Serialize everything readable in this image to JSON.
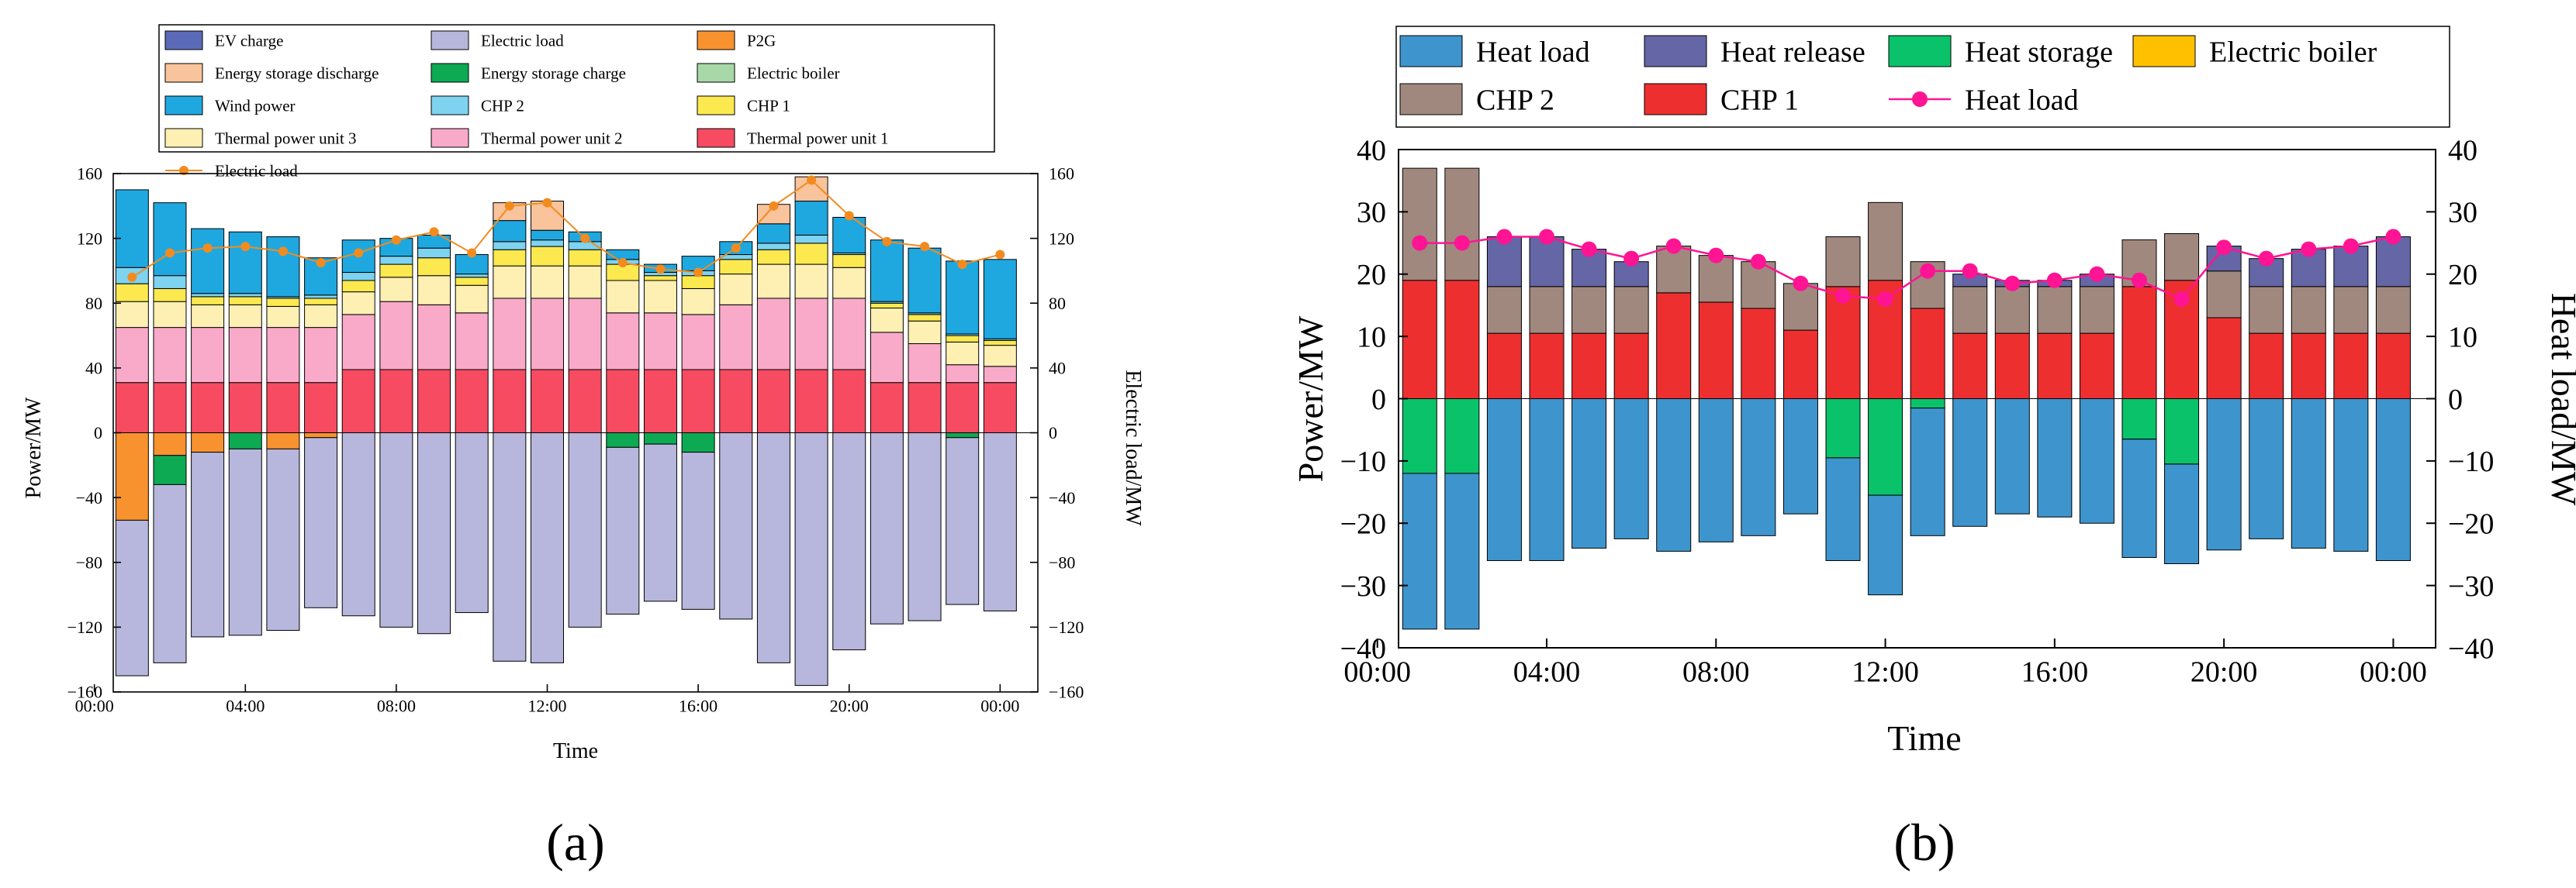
{
  "colors": {
    "ev_charge": "#5b6ab8",
    "electric_load": "#b7b7dd",
    "p2g": "#f7922f",
    "es_discharge": "#f9c39b",
    "es_charge": "#0daa53",
    "electric_boiler_a": "#a8d8a8",
    "wind_power": "#1fa8e0",
    "chp2_a": "#7dd3f0",
    "chp1_a": "#fce94f",
    "tpu3": "#fdf0b2",
    "tpu2": "#f9aac9",
    "tpu1": "#f74b61",
    "line_a": "#f28b1f",
    "heat_load": "#3e95cd",
    "heat_release": "#6466a6",
    "heat_storage": "#0ac26a",
    "electric_boiler_b": "#ffc000",
    "chp2_b": "#a1887f",
    "chp1_b": "#ee2f2f",
    "line_b": "#ff1493"
  },
  "chart_data": [
    {
      "panel": "(a)",
      "type": "bar",
      "stacked": true,
      "xlabel": "Time",
      "ylabel": "Power/MW",
      "ylabel_right": "Electric load/MW",
      "ylim": [
        -160,
        160
      ],
      "yticks": [
        -160,
        -120,
        -80,
        -40,
        0,
        40,
        80,
        120,
        160
      ],
      "ytick_labels": [
        "−160",
        "−120",
        "−80",
        "−40",
        "0",
        "40",
        "80",
        "120",
        "160"
      ],
      "xticks": [
        "00:00",
        "04:00",
        "08:00",
        "12:00",
        "16:00",
        "20:00",
        "00:00"
      ],
      "x_hours": [
        1,
        2,
        3,
        4,
        5,
        6,
        7,
        8,
        9,
        10,
        11,
        12,
        13,
        14,
        15,
        16,
        17,
        18,
        19,
        20,
        21,
        22,
        23,
        24
      ],
      "legend": [
        {
          "label": "EV charge",
          "color_key": "ev_charge"
        },
        {
          "label": "Electric load",
          "color_key": "electric_load"
        },
        {
          "label": "P2G",
          "color_key": "p2g"
        },
        {
          "label": "Energy storage discharge",
          "color_key": "es_discharge"
        },
        {
          "label": "Energy storage charge",
          "color_key": "es_charge"
        },
        {
          "label": "Electric boiler",
          "color_key": "electric_boiler_a"
        },
        {
          "label": "Wind power",
          "color_key": "wind_power"
        },
        {
          "label": "CHP 2",
          "color_key": "chp2_a"
        },
        {
          "label": "CHP 1",
          "color_key": "chp1_a"
        },
        {
          "label": "Thermal power unit 3",
          "color_key": "tpu3"
        },
        {
          "label": "Thermal power unit 2",
          "color_key": "tpu2"
        },
        {
          "label": "Thermal power unit 1",
          "color_key": "tpu1"
        },
        {
          "label": "Electric load",
          "color_key": "line_a",
          "marker": "line"
        }
      ],
      "positive_series": [
        {
          "name": "Thermal power unit 1",
          "color_key": "tpu1",
          "values": [
            31,
            31,
            31,
            31,
            31,
            31,
            39,
            39,
            39,
            39,
            39,
            39,
            39,
            39,
            39,
            39,
            39,
            39,
            39,
            39,
            31,
            31,
            31,
            31
          ]
        },
        {
          "name": "Thermal power unit 2",
          "color_key": "tpu2",
          "values": [
            34,
            34,
            34,
            34,
            34,
            34,
            34,
            42,
            40,
            35,
            44,
            44,
            44,
            35,
            35,
            34,
            40,
            44,
            44,
            44,
            31,
            24,
            11,
            10
          ]
        },
        {
          "name": "Thermal power unit 3",
          "color_key": "tpu3",
          "values": [
            16,
            16,
            14,
            14,
            13,
            14,
            14,
            15,
            18,
            17,
            20,
            20,
            20,
            20,
            20,
            16,
            19,
            21,
            21,
            19,
            15,
            14,
            14,
            13
          ]
        },
        {
          "name": "CHP 1",
          "color_key": "chp1_a",
          "values": [
            11,
            8,
            5,
            5,
            5,
            4,
            7,
            8,
            11,
            5,
            10,
            12,
            10,
            10,
            3,
            8,
            9,
            9,
            13,
            8,
            3,
            4,
            4,
            3
          ]
        },
        {
          "name": "CHP 2",
          "color_key": "chp2_a",
          "values": [
            10,
            8,
            2,
            2,
            1,
            2,
            5,
            5,
            6,
            2,
            5,
            4,
            5,
            3,
            2,
            3,
            3,
            4,
            5,
            1,
            1,
            1,
            1,
            1
          ]
        },
        {
          "name": "Electric boiler",
          "color_key": "electric_boiler_a",
          "values": [
            0,
            0,
            0,
            0,
            0,
            0,
            0,
            0,
            0,
            0,
            0,
            0,
            0,
            0,
            0,
            0,
            0,
            0,
            0,
            0,
            0,
            0,
            0,
            0
          ]
        },
        {
          "name": "Wind power",
          "color_key": "wind_power",
          "values": [
            48,
            45,
            40,
            38,
            37,
            23,
            20,
            11,
            8,
            12,
            13,
            6,
            6,
            6,
            5,
            9,
            8,
            12,
            21,
            22,
            38,
            40,
            45,
            49
          ]
        },
        {
          "name": "Energy storage discharge",
          "color_key": "es_discharge",
          "values": [
            0,
            0,
            0,
            0,
            0,
            0,
            0,
            0,
            0,
            0,
            11,
            18,
            0,
            0,
            0,
            0,
            0,
            12,
            15,
            0,
            0,
            0,
            0,
            0
          ]
        }
      ],
      "negative_series": [
        {
          "name": "P2G",
          "color_key": "p2g",
          "values": [
            -54,
            -14,
            -12,
            0,
            -10,
            -3,
            0,
            0,
            0,
            0,
            0,
            0,
            0,
            0,
            0,
            0,
            0,
            0,
            0,
            0,
            0,
            0,
            0,
            0
          ]
        },
        {
          "name": "Energy storage charge",
          "color_key": "es_charge",
          "values": [
            0,
            -18,
            0,
            -10,
            0,
            0,
            0,
            0,
            0,
            0,
            0,
            0,
            0,
            -9,
            -7,
            -12,
            0,
            0,
            0,
            0,
            0,
            0,
            -3,
            0
          ]
        },
        {
          "name": "EV charge",
          "color_key": "ev_charge",
          "values": [
            0,
            0,
            0,
            0,
            0,
            0,
            0,
            0,
            0,
            0,
            0,
            0,
            0,
            0,
            0,
            0,
            0,
            0,
            0,
            0,
            0,
            0,
            0,
            0
          ]
        },
        {
          "name": "Electric load",
          "color_key": "electric_load",
          "values": [
            -96,
            -110,
            -114,
            -115,
            -112,
            -105,
            -113,
            -120,
            -124,
            -111,
            -141,
            -142,
            -120,
            -103,
            -97,
            -97,
            -115,
            -142,
            -156,
            -134,
            -118,
            -116,
            -103,
            -110
          ]
        }
      ],
      "line": {
        "name": "Electric load",
        "color_key": "line_a",
        "values": [
          96,
          111,
          114,
          115,
          112,
          105,
          111,
          119,
          124,
          111,
          140,
          142,
          120,
          105,
          101,
          99,
          114,
          140,
          156,
          134,
          118,
          115,
          104,
          110
        ]
      }
    },
    {
      "panel": "(b)",
      "type": "bar",
      "stacked": true,
      "xlabel": "Time",
      "ylabel": "Power/MW",
      "ylabel_right": "Heat load/MW",
      "ylim": [
        -40,
        40
      ],
      "yticks": [
        -40,
        -30,
        -20,
        -10,
        0,
        10,
        20,
        30,
        40
      ],
      "ytick_labels": [
        "−40",
        "−30",
        "−20",
        "−10",
        "0",
        "10",
        "20",
        "30",
        "40"
      ],
      "xticks": [
        "00:00",
        "04:00",
        "08:00",
        "12:00",
        "16:00",
        "20:00",
        "00:00"
      ],
      "x_hours": [
        1,
        2,
        3,
        4,
        5,
        6,
        7,
        8,
        9,
        10,
        11,
        12,
        13,
        14,
        15,
        16,
        17,
        18,
        19,
        20,
        21,
        22,
        23,
        24
      ],
      "legend": [
        {
          "label": "Heat load",
          "color_key": "heat_load"
        },
        {
          "label": "Heat release",
          "color_key": "heat_release"
        },
        {
          "label": "Heat storage",
          "color_key": "heat_storage"
        },
        {
          "label": "Electric boiler",
          "color_key": "electric_boiler_b"
        },
        {
          "label": "CHP 2",
          "color_key": "chp2_b"
        },
        {
          "label": "CHP 1",
          "color_key": "chp1_b"
        },
        {
          "label": "Heat load",
          "color_key": "line_b",
          "marker": "line"
        }
      ],
      "positive_series": [
        {
          "name": "CHP 1",
          "color_key": "chp1_b",
          "values": [
            19,
            19,
            10.5,
            10.5,
            10.5,
            10.5,
            17,
            15.5,
            14.5,
            11,
            18,
            19,
            14.5,
            10.5,
            10.5,
            10.5,
            10.5,
            18,
            19,
            13,
            10.5,
            10.5,
            10.5,
            10.5
          ]
        },
        {
          "name": "Electric boiler",
          "color_key": "electric_boiler_b",
          "values": [
            0,
            0,
            0,
            0,
            0,
            0,
            0,
            0,
            0,
            0,
            0,
            0,
            0,
            0,
            0,
            0,
            0,
            0,
            0,
            0,
            0,
            0,
            0,
            0
          ]
        },
        {
          "name": "CHP 2",
          "color_key": "chp2_b",
          "values": [
            18,
            18,
            7.5,
            7.5,
            7.5,
            7.5,
            7.5,
            7.5,
            7.5,
            7.5,
            8,
            12.5,
            7.5,
            7.5,
            7.5,
            7.5,
            7.5,
            7.5,
            7.5,
            7.5,
            7.5,
            7.5,
            7.5,
            7.5
          ]
        },
        {
          "name": "Heat release",
          "color_key": "heat_release",
          "values": [
            0,
            0,
            8,
            8,
            6,
            4,
            0,
            0,
            0,
            0,
            0,
            0,
            0,
            2,
            1,
            1,
            2,
            0,
            0,
            4,
            4.5,
            6,
            6.5,
            8
          ]
        }
      ],
      "negative_series": [
        {
          "name": "Heat storage",
          "color_key": "heat_storage",
          "values": [
            -12,
            -12,
            0,
            0,
            0,
            0,
            0,
            0,
            0,
            0,
            -9.5,
            -15.5,
            -1.5,
            0,
            0,
            0,
            0,
            -6.5,
            -10.5,
            0,
            0,
            0,
            0,
            0
          ]
        },
        {
          "name": "Heat load",
          "color_key": "heat_load",
          "values": [
            -25,
            -25,
            -26,
            -26,
            -24,
            -22.5,
            -24.5,
            -23,
            -22,
            -18.5,
            -16.5,
            -16,
            -20.5,
            -20.5,
            -18.5,
            -19,
            -20,
            -19,
            -16,
            -24.3,
            -22.5,
            -24,
            -24.5,
            -26
          ]
        }
      ],
      "line": {
        "name": "Heat load",
        "color_key": "line_b",
        "values": [
          25,
          25,
          26,
          26,
          24,
          22.5,
          24.5,
          23,
          22,
          18.5,
          16.5,
          16,
          20.5,
          20.5,
          18.5,
          19,
          20,
          19,
          16,
          24.3,
          22.5,
          24,
          24.5,
          26
        ]
      }
    }
  ]
}
